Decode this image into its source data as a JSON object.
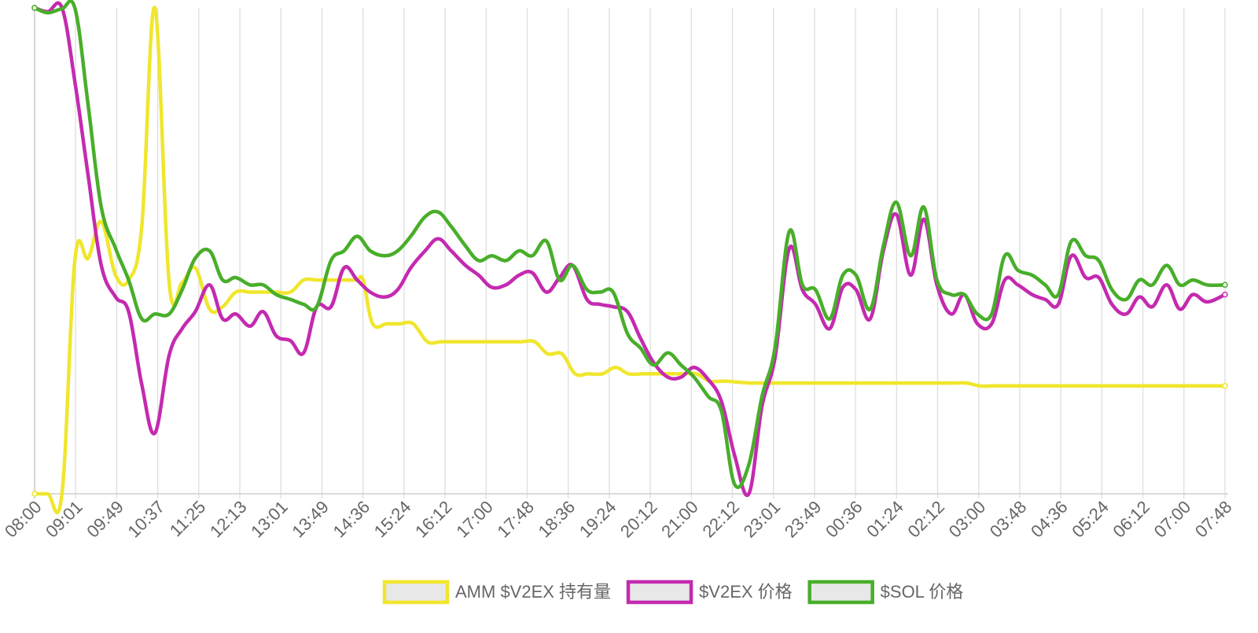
{
  "chart_data": {
    "type": "line",
    "title": "",
    "xlabel": "",
    "ylabel": "",
    "y_axis_labels": "none",
    "grid": "vertical",
    "legend_position": "bottom",
    "categories": [
      "08:00",
      "09:01",
      "09:49",
      "10:37",
      "11:25",
      "12:13",
      "13:01",
      "13:49",
      "14:36",
      "15:24",
      "16:12",
      "17:00",
      "17:48",
      "18:36",
      "19:24",
      "20:12",
      "21:00",
      "22:12",
      "23:01",
      "23:49",
      "00:36",
      "01:24",
      "02:12",
      "03:00",
      "03:48",
      "04:36",
      "05:24",
      "06:12",
      "07:00",
      "07:48"
    ],
    "ylim": [
      0,
      1
    ],
    "series": [
      {
        "name": "AMM $V2EX 持有量",
        "color": "#f0e62d",
        "values": [
          [
            0,
            0
          ],
          [
            0.011,
            0
          ],
          [
            0.023,
            0
          ],
          [
            0.034,
            0.485
          ],
          [
            0.045,
            0.485
          ],
          [
            0.056,
            0.56
          ],
          [
            0.068,
            0.45
          ],
          [
            0.079,
            0.44
          ],
          [
            0.09,
            0.55
          ],
          [
            0.101,
            1.0
          ],
          [
            0.113,
            0.435
          ],
          [
            0.124,
            0.435
          ],
          [
            0.135,
            0.465
          ],
          [
            0.147,
            0.38
          ],
          [
            0.158,
            0.385
          ],
          [
            0.169,
            0.415
          ],
          [
            0.181,
            0.415
          ],
          [
            0.192,
            0.415
          ],
          [
            0.203,
            0.415
          ],
          [
            0.215,
            0.415
          ],
          [
            0.226,
            0.44
          ],
          [
            0.237,
            0.44
          ],
          [
            0.249,
            0.44
          ],
          [
            0.26,
            0.44
          ],
          [
            0.26,
            0.44
          ],
          [
            0.26,
            0.44
          ],
          [
            0.26,
            0.44
          ],
          [
            0.26,
            0.44
          ],
          [
            0.265,
            0.44
          ],
          [
            0.271,
            0.44
          ],
          [
            0.276,
            0.44
          ],
          [
            0.284,
            0.35
          ],
          [
            0.296,
            0.35
          ],
          [
            0.307,
            0.35
          ],
          [
            0.318,
            0.35
          ],
          [
            0.33,
            0.313
          ],
          [
            0.341,
            0.313
          ],
          [
            0.352,
            0.313
          ],
          [
            0.364,
            0.313
          ],
          [
            0.375,
            0.313
          ],
          [
            0.386,
            0.313
          ],
          [
            0.398,
            0.313
          ],
          [
            0.409,
            0.313
          ],
          [
            0.42,
            0.313
          ],
          [
            0.431,
            0.288
          ],
          [
            0.443,
            0.288
          ],
          [
            0.454,
            0.247
          ],
          [
            0.465,
            0.247
          ],
          [
            0.477,
            0.247
          ],
          [
            0.488,
            0.26
          ],
          [
            0.499,
            0.247
          ],
          [
            0.511,
            0.247
          ],
          [
            0.522,
            0.247
          ],
          [
            0.533,
            0.247
          ],
          [
            0.545,
            0.247
          ],
          [
            0.556,
            0.247
          ],
          [
            0.567,
            0.232
          ],
          [
            0.579,
            0.232
          ],
          [
            0.59,
            0.23
          ],
          [
            0.601,
            0.228
          ],
          [
            0.613,
            0.228
          ],
          [
            0.624,
            0.228
          ],
          [
            0.635,
            0.228
          ],
          [
            0.647,
            0.228
          ],
          [
            0.658,
            0.228
          ],
          [
            0.669,
            0.228
          ],
          [
            0.681,
            0.228
          ],
          [
            0.692,
            0.228
          ],
          [
            0.703,
            0.228
          ],
          [
            0.715,
            0.228
          ],
          [
            0.726,
            0.228
          ],
          [
            0.737,
            0.228
          ],
          [
            0.749,
            0.228
          ],
          [
            0.76,
            0.228
          ],
          [
            0.771,
            0.228
          ],
          [
            0.783,
            0.228
          ],
          [
            0.794,
            0.222
          ],
          [
            0.805,
            0.222
          ],
          [
            0.817,
            0.222
          ],
          [
            0.828,
            0.222
          ],
          [
            0.839,
            0.222
          ],
          [
            0.851,
            0.222
          ],
          [
            0.862,
            0.222
          ],
          [
            0.873,
            0.222
          ],
          [
            0.885,
            0.222
          ],
          [
            0.896,
            0.222
          ],
          [
            0.907,
            0.222
          ],
          [
            0.919,
            0.222
          ],
          [
            0.93,
            0.222
          ],
          [
            0.941,
            0.222
          ],
          [
            0.953,
            0.222
          ],
          [
            0.964,
            0.222
          ],
          [
            0.975,
            0.222
          ],
          [
            0.987,
            0.222
          ],
          [
            1.0,
            0.222
          ]
        ]
      },
      {
        "name": "$V2EX 价格",
        "color": "#c42ab0",
        "values": [
          [
            0,
            1.0
          ],
          [
            0.011,
            0.992
          ],
          [
            0.023,
            1.0
          ],
          [
            0.034,
            0.845
          ],
          [
            0.045,
            0.655
          ],
          [
            0.056,
            0.47
          ],
          [
            0.068,
            0.405
          ],
          [
            0.079,
            0.375
          ],
          [
            0.09,
            0.225
          ],
          [
            0.101,
            0.125
          ],
          [
            0.113,
            0.285
          ],
          [
            0.124,
            0.34
          ],
          [
            0.135,
            0.375
          ],
          [
            0.147,
            0.43
          ],
          [
            0.158,
            0.36
          ],
          [
            0.169,
            0.37
          ],
          [
            0.181,
            0.345
          ],
          [
            0.192,
            0.375
          ],
          [
            0.203,
            0.325
          ],
          [
            0.215,
            0.315
          ],
          [
            0.226,
            0.29
          ],
          [
            0.237,
            0.385
          ],
          [
            0.249,
            0.385
          ],
          [
            0.26,
            0.465
          ],
          [
            0.271,
            0.44
          ],
          [
            0.282,
            0.415
          ],
          [
            0.294,
            0.405
          ],
          [
            0.305,
            0.42
          ],
          [
            0.316,
            0.465
          ],
          [
            0.328,
            0.5
          ],
          [
            0.339,
            0.525
          ],
          [
            0.35,
            0.5
          ],
          [
            0.362,
            0.47
          ],
          [
            0.373,
            0.45
          ],
          [
            0.384,
            0.425
          ],
          [
            0.396,
            0.43
          ],
          [
            0.407,
            0.45
          ],
          [
            0.418,
            0.455
          ],
          [
            0.43,
            0.415
          ],
          [
            0.441,
            0.445
          ],
          [
            0.452,
            0.47
          ],
          [
            0.464,
            0.4
          ],
          [
            0.475,
            0.39
          ],
          [
            0.486,
            0.385
          ],
          [
            0.498,
            0.375
          ],
          [
            0.509,
            0.32
          ],
          [
            0.52,
            0.27
          ],
          [
            0.532,
            0.24
          ],
          [
            0.543,
            0.24
          ],
          [
            0.554,
            0.26
          ],
          [
            0.566,
            0.235
          ],
          [
            0.577,
            0.19
          ],
          [
            0.588,
            0.08
          ],
          [
            0.6,
            0.0
          ],
          [
            0.611,
            0.18
          ],
          [
            0.622,
            0.28
          ],
          [
            0.634,
            0.505
          ],
          [
            0.645,
            0.42
          ],
          [
            0.656,
            0.39
          ],
          [
            0.668,
            0.34
          ],
          [
            0.679,
            0.425
          ],
          [
            0.69,
            0.42
          ],
          [
            0.702,
            0.36
          ],
          [
            0.713,
            0.5
          ],
          [
            0.724,
            0.575
          ],
          [
            0.736,
            0.45
          ],
          [
            0.747,
            0.565
          ],
          [
            0.758,
            0.43
          ],
          [
            0.77,
            0.37
          ],
          [
            0.781,
            0.41
          ],
          [
            0.792,
            0.35
          ],
          [
            0.804,
            0.35
          ],
          [
            0.815,
            0.44
          ],
          [
            0.826,
            0.43
          ],
          [
            0.838,
            0.41
          ],
          [
            0.849,
            0.4
          ],
          [
            0.86,
            0.39
          ],
          [
            0.871,
            0.49
          ],
          [
            0.883,
            0.445
          ],
          [
            0.894,
            0.445
          ],
          [
            0.905,
            0.39
          ],
          [
            0.917,
            0.37
          ],
          [
            0.928,
            0.405
          ],
          [
            0.939,
            0.385
          ],
          [
            0.951,
            0.43
          ],
          [
            0.962,
            0.38
          ],
          [
            0.973,
            0.41
          ],
          [
            0.985,
            0.395
          ],
          [
            1.0,
            0.41
          ]
        ]
      },
      {
        "name": "$SOL 价格",
        "color": "#48ae2a",
        "values": [
          [
            0,
            1.0
          ],
          [
            0.011,
            0.99
          ],
          [
            0.023,
            0.998
          ],
          [
            0.034,
            0.998
          ],
          [
            0.045,
            0.8
          ],
          [
            0.056,
            0.59
          ],
          [
            0.068,
            0.505
          ],
          [
            0.079,
            0.44
          ],
          [
            0.09,
            0.36
          ],
          [
            0.101,
            0.37
          ],
          [
            0.113,
            0.37
          ],
          [
            0.124,
            0.42
          ],
          [
            0.135,
            0.485
          ],
          [
            0.147,
            0.5
          ],
          [
            0.158,
            0.44
          ],
          [
            0.169,
            0.445
          ],
          [
            0.181,
            0.43
          ],
          [
            0.192,
            0.43
          ],
          [
            0.203,
            0.41
          ],
          [
            0.215,
            0.4
          ],
          [
            0.226,
            0.39
          ],
          [
            0.237,
            0.385
          ],
          [
            0.249,
            0.48
          ],
          [
            0.26,
            0.5
          ],
          [
            0.271,
            0.53
          ],
          [
            0.282,
            0.5
          ],
          [
            0.294,
            0.49
          ],
          [
            0.305,
            0.5
          ],
          [
            0.316,
            0.53
          ],
          [
            0.328,
            0.57
          ],
          [
            0.339,
            0.58
          ],
          [
            0.35,
            0.55
          ],
          [
            0.362,
            0.51
          ],
          [
            0.373,
            0.48
          ],
          [
            0.384,
            0.49
          ],
          [
            0.396,
            0.48
          ],
          [
            0.407,
            0.5
          ],
          [
            0.418,
            0.49
          ],
          [
            0.43,
            0.52
          ],
          [
            0.441,
            0.44
          ],
          [
            0.452,
            0.47
          ],
          [
            0.464,
            0.42
          ],
          [
            0.475,
            0.415
          ],
          [
            0.486,
            0.415
          ],
          [
            0.498,
            0.33
          ],
          [
            0.509,
            0.3
          ],
          [
            0.52,
            0.265
          ],
          [
            0.532,
            0.29
          ],
          [
            0.543,
            0.265
          ],
          [
            0.554,
            0.24
          ],
          [
            0.566,
            0.2
          ],
          [
            0.577,
            0.17
          ],
          [
            0.588,
            0.02
          ],
          [
            0.6,
            0.06
          ],
          [
            0.611,
            0.2
          ],
          [
            0.622,
            0.3
          ],
          [
            0.634,
            0.54
          ],
          [
            0.645,
            0.43
          ],
          [
            0.656,
            0.42
          ],
          [
            0.668,
            0.36
          ],
          [
            0.679,
            0.45
          ],
          [
            0.69,
            0.45
          ],
          [
            0.702,
            0.38
          ],
          [
            0.713,
            0.51
          ],
          [
            0.724,
            0.6
          ],
          [
            0.736,
            0.49
          ],
          [
            0.747,
            0.59
          ],
          [
            0.758,
            0.44
          ],
          [
            0.77,
            0.41
          ],
          [
            0.781,
            0.41
          ],
          [
            0.792,
            0.37
          ],
          [
            0.804,
            0.37
          ],
          [
            0.815,
            0.49
          ],
          [
            0.826,
            0.46
          ],
          [
            0.838,
            0.45
          ],
          [
            0.849,
            0.43
          ],
          [
            0.86,
            0.41
          ],
          [
            0.871,
            0.52
          ],
          [
            0.883,
            0.49
          ],
          [
            0.894,
            0.48
          ],
          [
            0.905,
            0.42
          ],
          [
            0.917,
            0.4
          ],
          [
            0.928,
            0.44
          ],
          [
            0.939,
            0.43
          ],
          [
            0.951,
            0.47
          ],
          [
            0.962,
            0.43
          ],
          [
            0.973,
            0.44
          ],
          [
            0.985,
            0.43
          ],
          [
            1.0,
            0.43
          ]
        ]
      }
    ]
  }
}
